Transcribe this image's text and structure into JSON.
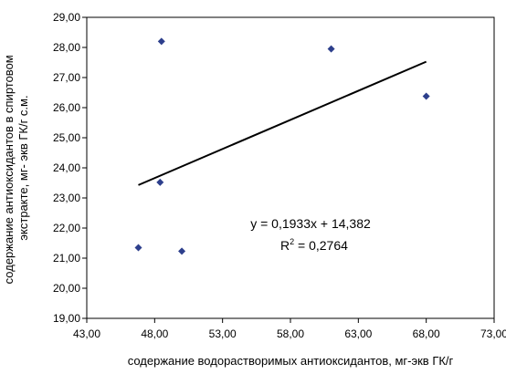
{
  "chart_data": {
    "type": "scatter",
    "xlabel": "содержание водорастворимых антиоксидантов, мг-экв ГК/г",
    "ylabel_lines": [
      "содержание антиоксидантов в спиртовом",
      "экстракте, мг- экв ГК/г с.м."
    ],
    "xlim": [
      43,
      73
    ],
    "ylim": [
      19,
      29
    ],
    "x_ticks": [
      "43,00",
      "48,00",
      "53,00",
      "58,00",
      "63,00",
      "68,00",
      "73,00"
    ],
    "y_ticks": [
      "19,00",
      "20,00",
      "21,00",
      "22,00",
      "23,00",
      "24,00",
      "25,00",
      "26,00",
      "27,00",
      "28,00",
      "29,00"
    ],
    "grid": false,
    "legend": "none",
    "marker_color": "#2d3f8c",
    "points": [
      {
        "x": 46.8,
        "y": 21.35
      },
      {
        "x": 48.5,
        "y": 28.2
      },
      {
        "x": 48.4,
        "y": 23.52
      },
      {
        "x": 50.0,
        "y": 21.23
      },
      {
        "x": 61.0,
        "y": 27.95
      },
      {
        "x": 68.0,
        "y": 26.38
      }
    ],
    "trendline": {
      "type": "linear",
      "slope": 0.1933,
      "intercept": 14.382,
      "x_range": [
        46.8,
        68.0
      ],
      "equation": "y = 0,1933x + 14,382",
      "r2_prefix": "R",
      "r2_exponent": "2",
      "r2_value": " = 0,2764"
    }
  }
}
